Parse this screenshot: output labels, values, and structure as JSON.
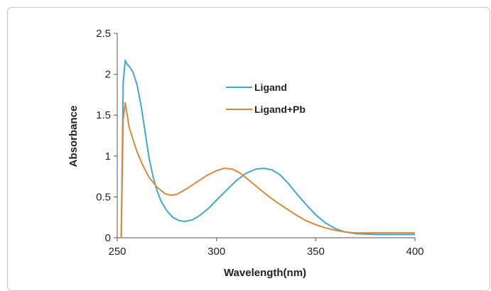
{
  "chart_data": {
    "type": "line",
    "title": "",
    "xlabel": "Wavelength(nm)",
    "ylabel": "Absorbance",
    "xlim": [
      250,
      400
    ],
    "ylim": [
      0,
      2.5
    ],
    "x_ticks": [
      "250",
      "300",
      "350",
      "400"
    ],
    "y_ticks": [
      "0",
      "0.5",
      "1",
      "1.5",
      "2",
      "2.5"
    ],
    "grid": false,
    "legend_position": "upper-center",
    "series": [
      {
        "name": "Ligand",
        "color": "#3fa9d6",
        "points": [
          [
            252,
            0
          ],
          [
            253,
            1.9
          ],
          [
            254,
            2.17
          ],
          [
            255,
            2.12
          ],
          [
            256,
            2.1
          ],
          [
            258,
            2.02
          ],
          [
            260,
            1.87
          ],
          [
            262,
            1.62
          ],
          [
            264,
            1.3
          ],
          [
            266,
            0.98
          ],
          [
            268,
            0.75
          ],
          [
            270,
            0.58
          ],
          [
            272,
            0.45
          ],
          [
            275,
            0.33
          ],
          [
            278,
            0.25
          ],
          [
            281,
            0.21
          ],
          [
            284,
            0.2
          ],
          [
            288,
            0.22
          ],
          [
            292,
            0.28
          ],
          [
            296,
            0.36
          ],
          [
            300,
            0.46
          ],
          [
            305,
            0.58
          ],
          [
            310,
            0.7
          ],
          [
            315,
            0.79
          ],
          [
            320,
            0.84
          ],
          [
            324,
            0.85
          ],
          [
            328,
            0.83
          ],
          [
            332,
            0.77
          ],
          [
            336,
            0.67
          ],
          [
            340,
            0.55
          ],
          [
            345,
            0.41
          ],
          [
            350,
            0.28
          ],
          [
            355,
            0.18
          ],
          [
            360,
            0.11
          ],
          [
            365,
            0.07
          ],
          [
            370,
            0.05
          ],
          [
            380,
            0.04
          ],
          [
            390,
            0.04
          ],
          [
            400,
            0.04
          ]
        ]
      },
      {
        "name": "Ligand+Pb",
        "color": "#e0883a",
        "points": [
          [
            252,
            0
          ],
          [
            253,
            1.45
          ],
          [
            254,
            1.65
          ],
          [
            255,
            1.5
          ],
          [
            256,
            1.35
          ],
          [
            258,
            1.2
          ],
          [
            260,
            1.05
          ],
          [
            263,
            0.88
          ],
          [
            266,
            0.74
          ],
          [
            270,
            0.62
          ],
          [
            274,
            0.54
          ],
          [
            277,
            0.52
          ],
          [
            280,
            0.53
          ],
          [
            285,
            0.6
          ],
          [
            290,
            0.68
          ],
          [
            295,
            0.76
          ],
          [
            300,
            0.82
          ],
          [
            304,
            0.85
          ],
          [
            308,
            0.84
          ],
          [
            312,
            0.79
          ],
          [
            316,
            0.71
          ],
          [
            320,
            0.63
          ],
          [
            325,
            0.53
          ],
          [
            330,
            0.44
          ],
          [
            335,
            0.36
          ],
          [
            340,
            0.28
          ],
          [
            345,
            0.21
          ],
          [
            350,
            0.16
          ],
          [
            355,
            0.12
          ],
          [
            360,
            0.09
          ],
          [
            365,
            0.07
          ],
          [
            370,
            0.06
          ],
          [
            380,
            0.06
          ],
          [
            390,
            0.06
          ],
          [
            400,
            0.06
          ]
        ]
      }
    ]
  }
}
